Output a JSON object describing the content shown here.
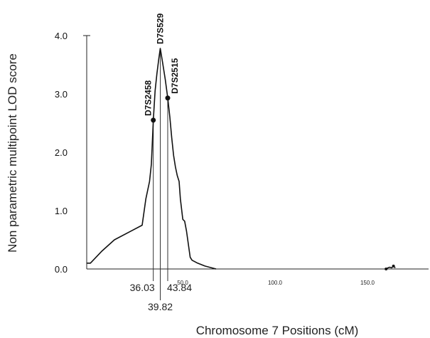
{
  "chart_data": {
    "type": "line",
    "title": "",
    "xlabel": "Chromosome 7 Positions (cM)",
    "ylabel": "Non parametric multipoint LOD score",
    "xlim": [
      0,
      180
    ],
    "ylim": [
      0,
      4.0
    ],
    "x_tick_labels": [
      "50.0",
      "100.0",
      "150.0"
    ],
    "x_ticks": [
      50,
      100,
      150
    ],
    "y_tick_labels": [
      "0.0",
      "1.0",
      "2.0",
      "3.0",
      "4.0"
    ],
    "y_ticks": [
      0,
      1,
      2,
      3,
      4
    ],
    "grid": false,
    "series": [
      {
        "name": "",
        "x": [
          0,
          2,
          8,
          15,
          24,
          30,
          32,
          34,
          35,
          36.03,
          37,
          38,
          39,
          39.82,
          41,
          42.5,
          43.84,
          45,
          46,
          47,
          48,
          49,
          50,
          50.7,
          52,
          53,
          54,
          56,
          57,
          60,
          64,
          70
        ],
        "y": [
          0.1,
          0.1,
          0.3,
          0.5,
          0.65,
          0.75,
          1.2,
          1.5,
          1.8,
          2.55,
          3.05,
          3.35,
          3.6,
          3.78,
          3.55,
          3.25,
          2.93,
          2.6,
          2.25,
          1.95,
          1.75,
          1.6,
          1.5,
          1.2,
          0.85,
          0.82,
          0.65,
          0.2,
          0.15,
          0.1,
          0.05,
          0.0
        ],
        "color": "#111111"
      },
      {
        "name": "",
        "x": [
          162,
          163,
          164,
          165,
          166,
          167
        ],
        "y": [
          0.0,
          0.02,
          0.03,
          0.02,
          0.05,
          0.02
        ],
        "color": "#111111"
      }
    ],
    "markers": [
      {
        "name": "D7S2458",
        "x": 36.03,
        "y": 2.55,
        "position_label": "36.03"
      },
      {
        "name": "D7S529",
        "x": 39.82,
        "y": 3.78,
        "position_label": "39.82"
      },
      {
        "name": "D7S2515",
        "x": 43.84,
        "y": 2.93,
        "position_label": "43.84"
      }
    ]
  }
}
